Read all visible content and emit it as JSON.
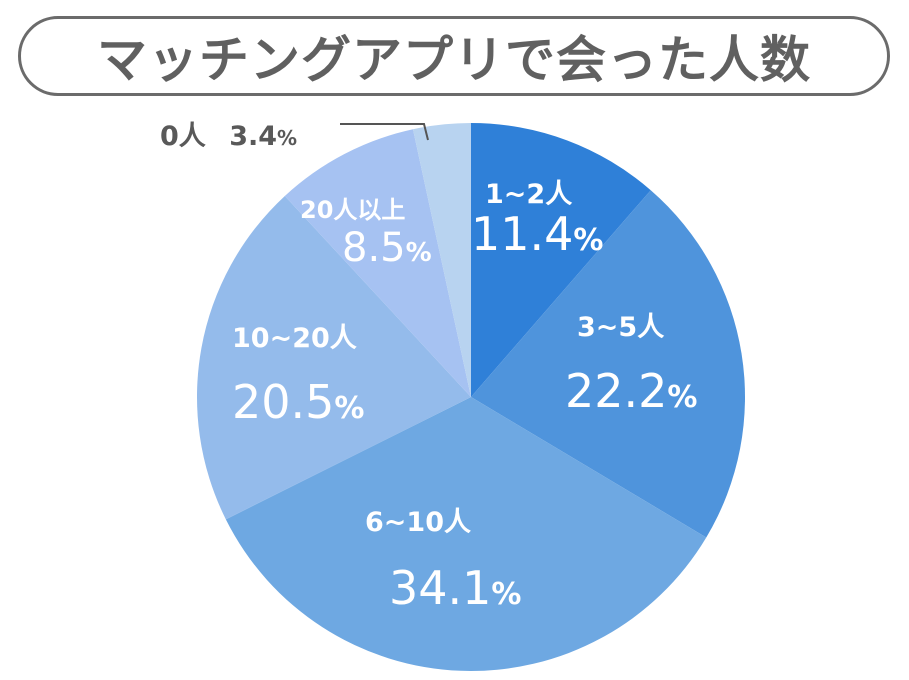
{
  "title": "マッチングアプリで会った人数",
  "chart_data": {
    "type": "pie",
    "title": "マッチングアプリで会った人数",
    "start_angle_deg": 0,
    "direction": "clockwise",
    "categories": [
      "1~2人",
      "3~5人",
      "6~10人",
      "10~20人",
      "20人以上",
      "0人"
    ],
    "values": [
      11.4,
      22.2,
      34.1,
      20.5,
      8.5,
      3.4
    ],
    "unit": "%",
    "colors": [
      "#2f80d8",
      "#4f94dc",
      "#6ea8e2",
      "#94bbeb",
      "#a6c2f2",
      "#b8d3f0"
    ]
  },
  "labels": {
    "s1": {
      "cat": "1~2人",
      "num": "11.4",
      "sign": "%"
    },
    "s2": {
      "cat": "3~5人",
      "num": "22.2",
      "sign": "%"
    },
    "s3": {
      "cat": "6~10人",
      "num": "34.1",
      "sign": "%"
    },
    "s4": {
      "cat": "10~20人",
      "num": "20.5",
      "sign": "%"
    },
    "s5": {
      "cat": "20人以上",
      "num": "8.5",
      "sign": "%"
    },
    "s6": {
      "cat": "0人",
      "num": "3.4",
      "sign": "%"
    }
  }
}
